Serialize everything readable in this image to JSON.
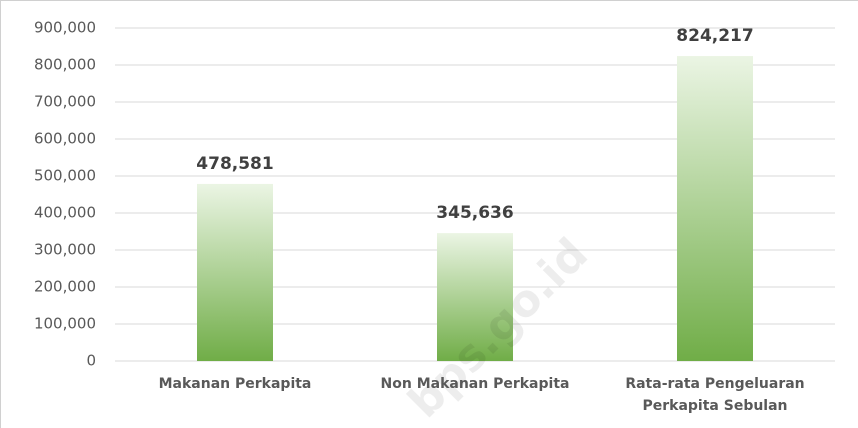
{
  "chart_data": {
    "type": "bar",
    "categories": [
      "Makanan Perkapita",
      "Non Makanan Perkapita",
      "Rata-rata Pengeluaran Perkapita Sebulan"
    ],
    "values": [
      478581,
      345636,
      824217
    ],
    "value_labels": [
      "478,581",
      "345,636",
      "824,217"
    ],
    "color": "#70ad47",
    "ylim": [
      0,
      900000
    ],
    "yticks": [
      0,
      {
        "value": 100000,
        "label": "100,000"
      },
      {
        "value": 200000,
        "label": "200,000"
      },
      {
        "value": 300000,
        "label": "300,000"
      },
      {
        "value": 400000,
        "label": "400,000"
      },
      {
        "value": 500000,
        "label": "500,000"
      },
      {
        "value": 600000,
        "label": "600,000"
      },
      {
        "value": 700000,
        "label": "700,000"
      },
      {
        "value": 800000,
        "label": "800,000"
      },
      {
        "value": 900000,
        "label": "900,000"
      }
    ],
    "grid": true,
    "watermark": "bps.go.id"
  }
}
